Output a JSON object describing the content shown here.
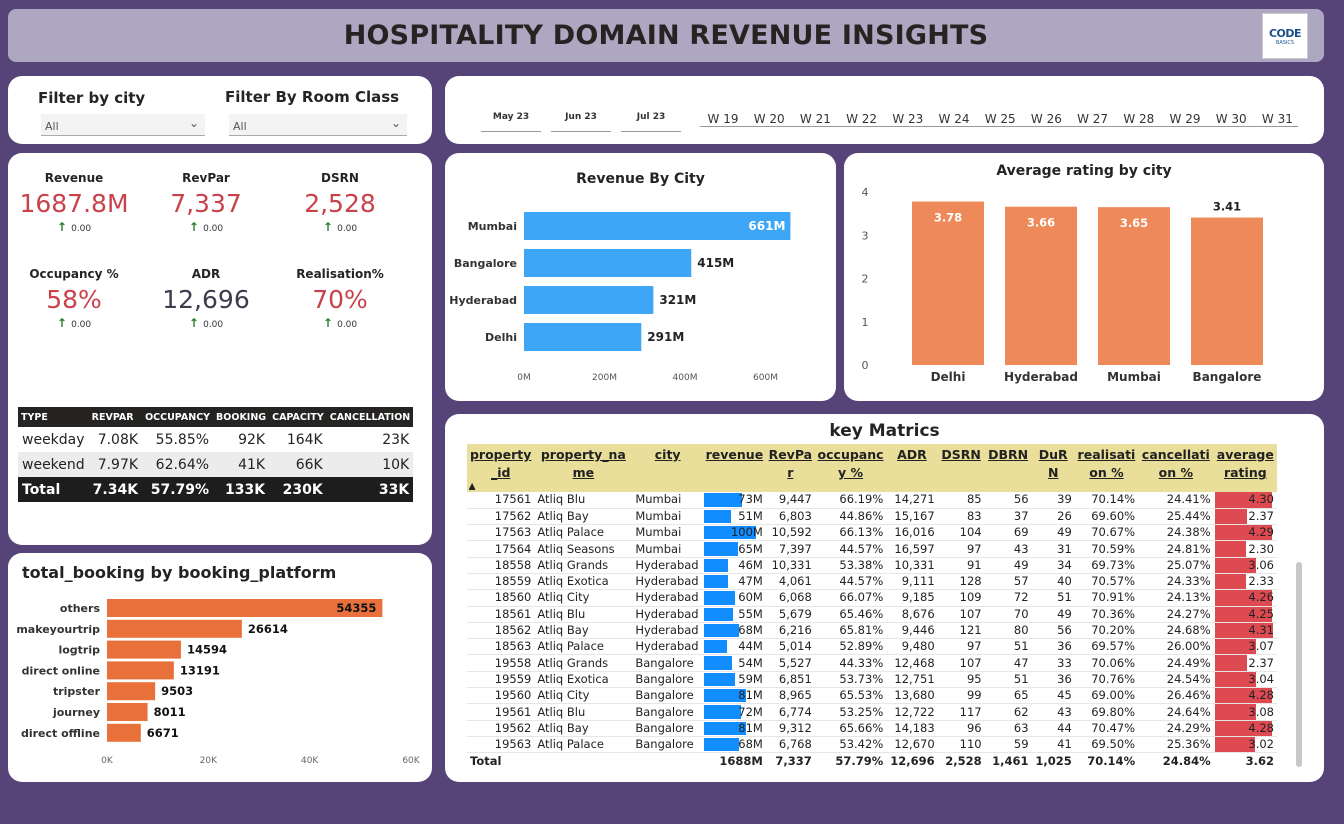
{
  "title": "HOSPITALITY DOMAIN REVENUE INSIGHTS",
  "logo": {
    "line1": "CODE",
    "line2": "BASICS"
  },
  "filters": {
    "city_label": "Filter by city",
    "city_value": "All",
    "room_label": "Filter By Room Class",
    "room_value": "All"
  },
  "months": [
    "May 23",
    "Jun 23",
    "Jul 23"
  ],
  "weeks": [
    "W 19",
    "W 20",
    "W 21",
    "W 22",
    "W 23",
    "W 24",
    "W 25",
    "W 26",
    "W 27",
    "W 28",
    "W 29",
    "W 30",
    "W 31"
  ],
  "kpis": [
    {
      "label": "Revenue",
      "value": "1687.8M",
      "change": "0.00"
    },
    {
      "label": "RevPar",
      "value": "7,337",
      "change": "0.00"
    },
    {
      "label": "DSRN",
      "value": "2,528",
      "change": "0.00"
    },
    {
      "label": "Occupancy %",
      "value": "58%",
      "change": "0.00"
    },
    {
      "label": "ADR",
      "value": "12,696",
      "change": "0.00"
    },
    {
      "label": "Realisation%",
      "value": "70%",
      "change": "0.00"
    }
  ],
  "kpi_colors": {
    "red": "#c9424a",
    "dark": "#3d3d4e"
  },
  "day_type_table": {
    "headers": [
      "TYPE",
      "REVPAR",
      "OCCUPANCY",
      "BOOKING",
      "CAPACITY",
      "CANCELLATION"
    ],
    "rows": [
      [
        "weekday",
        "7.08K",
        "55.85%",
        "92K",
        "164K",
        "23K"
      ],
      [
        "weekend",
        "7.97K",
        "62.64%",
        "41K",
        "66K",
        "10K"
      ]
    ],
    "total": [
      "Total",
      "7.34K",
      "57.79%",
      "133K",
      "230K",
      "33K"
    ]
  },
  "booking_platform": {
    "title": "total_booking by booking_platform",
    "categories": [
      "others",
      "makeyourtrip",
      "logtrip",
      "direct online",
      "tripster",
      "journey",
      "direct offline"
    ],
    "values": [
      54355,
      26614,
      14594,
      13191,
      9503,
      8011,
      6671
    ],
    "axis_ticks": [
      "0K",
      "20K",
      "40K",
      "60K"
    ],
    "xmax": 60000,
    "color": "#e8703a"
  },
  "revenue_by_city": {
    "title": "Revenue By City",
    "categories": [
      "Mumbai",
      "Bangalore",
      "Hyderabad",
      "Delhi"
    ],
    "values": [
      661,
      415,
      321,
      291
    ],
    "labels": [
      "661M",
      "415M",
      "321M",
      "291M"
    ],
    "axis_ticks": [
      "0M",
      "200M",
      "400M",
      "600M"
    ],
    "xmax": 660,
    "color": "#3ea6f7"
  },
  "avg_rating_by_city": {
    "title": "Average rating by city",
    "categories": [
      "Delhi",
      "Hyderabad",
      "Mumbai",
      "Bangalore"
    ],
    "values": [
      3.78,
      3.66,
      3.65,
      3.41
    ],
    "labels": [
      "3.78",
      "3.66",
      "3.65",
      "3.41"
    ],
    "axis_ticks": [
      "0",
      "1",
      "2",
      "3",
      "4"
    ],
    "ymax": 4,
    "color": "#ee8a5a"
  },
  "chart_data": [
    {
      "type": "bar",
      "title": "total_booking by booking_platform",
      "categories": [
        "others",
        "makeyourtrip",
        "logtrip",
        "direct online",
        "tripster",
        "journey",
        "direct offline"
      ],
      "values": [
        54355,
        26614,
        14594,
        13191,
        9503,
        8011,
        6671
      ],
      "xlim": [
        0,
        60000
      ]
    },
    {
      "type": "bar",
      "title": "Revenue By City",
      "categories": [
        "Mumbai",
        "Bangalore",
        "Hyderabad",
        "Delhi"
      ],
      "values": [
        661,
        415,
        321,
        291
      ],
      "xlim": [
        0,
        660
      ]
    },
    {
      "type": "bar",
      "title": "Average rating by city",
      "categories": [
        "Delhi",
        "Hyderabad",
        "Mumbai",
        "Bangalore"
      ],
      "values": [
        3.78,
        3.66,
        3.65,
        3.41
      ],
      "ylim": [
        0,
        4
      ]
    }
  ],
  "key_metrics": {
    "title": "key Matrics",
    "headers": [
      "property_id",
      "property_name",
      "city",
      "revenue",
      "RevPar",
      "occupancy %",
      "ADR",
      "DSRN",
      "DBRN",
      "DuRN",
      "realisation %",
      "cancellation %",
      "average rating"
    ],
    "header_display": [
      "property\n_id",
      "property_na\nme",
      "city",
      "revenue",
      "RevPa\nr",
      "occupanc\ny %",
      "ADR",
      "DSRN",
      "DBRN",
      "DuR\nN",
      "realisati\non %",
      "cancellati\non %",
      "average\nrating"
    ],
    "rows": [
      [
        "17561",
        "Atliq Blu",
        "Mumbai",
        "73M",
        "9,447",
        "66.19%",
        "14,271",
        "85",
        "56",
        "39",
        "70.14%",
        "24.41%",
        "4.30"
      ],
      [
        "17562",
        "Atliq Bay",
        "Mumbai",
        "51M",
        "6,803",
        "44.86%",
        "15,167",
        "83",
        "37",
        "26",
        "69.60%",
        "25.44%",
        "2.37"
      ],
      [
        "17563",
        "Atliq Palace",
        "Mumbai",
        "100M",
        "10,592",
        "66.13%",
        "16,016",
        "104",
        "69",
        "49",
        "70.67%",
        "24.38%",
        "4.29"
      ],
      [
        "17564",
        "Atliq Seasons",
        "Mumbai",
        "65M",
        "7,397",
        "44.57%",
        "16,597",
        "97",
        "43",
        "31",
        "70.59%",
        "24.81%",
        "2.30"
      ],
      [
        "18558",
        "Atliq Grands",
        "Hyderabad",
        "46M",
        "10,331",
        "53.38%",
        "10,331",
        "91",
        "49",
        "34",
        "69.73%",
        "25.07%",
        "3.06"
      ],
      [
        "18559",
        "Atliq Exotica",
        "Hyderabad",
        "47M",
        "4,061",
        "44.57%",
        "9,111",
        "128",
        "57",
        "40",
        "70.57%",
        "24.33%",
        "2.33"
      ],
      [
        "18560",
        "Atliq City",
        "Hyderabad",
        "60M",
        "6,068",
        "66.07%",
        "9,185",
        "109",
        "72",
        "51",
        "70.91%",
        "24.13%",
        "4.26"
      ],
      [
        "18561",
        "Atliq Blu",
        "Hyderabad",
        "55M",
        "5,679",
        "65.46%",
        "8,676",
        "107",
        "70",
        "49",
        "70.36%",
        "24.27%",
        "4.25"
      ],
      [
        "18562",
        "Atliq Bay",
        "Hyderabad",
        "68M",
        "6,216",
        "65.81%",
        "9,446",
        "121",
        "80",
        "56",
        "70.20%",
        "24.68%",
        "4.31"
      ],
      [
        "18563",
        "Atliq Palace",
        "Hyderabad",
        "44M",
        "5,014",
        "52.89%",
        "9,480",
        "97",
        "51",
        "36",
        "69.57%",
        "26.00%",
        "3.07"
      ],
      [
        "19558",
        "Atliq Grands",
        "Bangalore",
        "54M",
        "5,527",
        "44.33%",
        "12,468",
        "107",
        "47",
        "33",
        "70.06%",
        "24.49%",
        "2.37"
      ],
      [
        "19559",
        "Atliq Exotica",
        "Bangalore",
        "59M",
        "6,851",
        "53.73%",
        "12,751",
        "95",
        "51",
        "36",
        "70.76%",
        "24.54%",
        "3.04"
      ],
      [
        "19560",
        "Atliq City",
        "Bangalore",
        "81M",
        "8,965",
        "65.53%",
        "13,680",
        "99",
        "65",
        "45",
        "69.00%",
        "26.46%",
        "4.28"
      ],
      [
        "19561",
        "Atliq Blu",
        "Bangalore",
        "72M",
        "6,774",
        "53.25%",
        "12,722",
        "117",
        "62",
        "43",
        "69.80%",
        "24.64%",
        "3.08"
      ],
      [
        "19562",
        "Atliq Bay",
        "Bangalore",
        "81M",
        "9,312",
        "65.66%",
        "14,183",
        "96",
        "63",
        "44",
        "70.47%",
        "24.29%",
        "4.28"
      ],
      [
        "19563",
        "Atliq Palace",
        "Bangalore",
        "68M",
        "6,768",
        "53.42%",
        "12,670",
        "110",
        "59",
        "41",
        "69.50%",
        "25.36%",
        "3.02"
      ]
    ],
    "revenue_values": [
      73,
      51,
      100,
      65,
      46,
      47,
      60,
      55,
      68,
      44,
      54,
      59,
      81,
      72,
      81,
      68
    ],
    "rating_values": [
      4.3,
      2.37,
      4.29,
      2.3,
      3.06,
      2.33,
      4.26,
      4.25,
      4.31,
      3.07,
      2.37,
      3.04,
      4.28,
      3.08,
      4.28,
      3.02
    ],
    "total": [
      "Total",
      "",
      "",
      "1688M",
      "7,337",
      "57.79%",
      "12,696",
      "2,528",
      "1,461",
      "1,025",
      "70.14%",
      "24.84%",
      "3.62"
    ],
    "sort_indicator": "▲"
  }
}
